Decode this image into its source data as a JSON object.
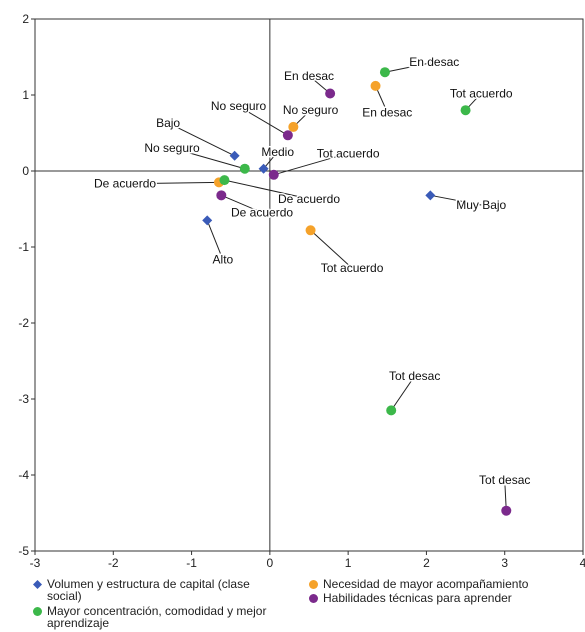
{
  "chart_data": {
    "type": "scatter",
    "title": "",
    "xlabel": "",
    "ylabel": "",
    "xlim": [
      -3,
      4
    ],
    "ylim": [
      -5,
      2
    ],
    "x_ticks": [
      "-3",
      "-2",
      "-1",
      "0",
      "1",
      "2",
      "3",
      "4"
    ],
    "y_ticks": [
      "2",
      "1",
      "0",
      "-1",
      "-2",
      "-3",
      "-4",
      "-5"
    ],
    "grid": false,
    "legend_position": "bottom",
    "series": [
      {
        "name": "Volumen y estructura de capital (clase social)",
        "color": "#3a5bb8",
        "marker": "diamond",
        "points": [
          {
            "x": -0.45,
            "y": 0.2,
            "label": "Bajo",
            "lx": -1.3,
            "ly": 0.58
          },
          {
            "x": -0.08,
            "y": 0.03,
            "label": "Medio",
            "lx": 0.1,
            "ly": 0.2
          },
          {
            "x": 2.05,
            "y": -0.32,
            "label": "Muy Bajo",
            "lx": 2.7,
            "ly": -0.5
          },
          {
            "x": -0.8,
            "y": -0.65,
            "label": "Alto",
            "lx": -0.6,
            "ly": -1.22
          }
        ]
      },
      {
        "name": "Necesidad de mayor acompañamiento",
        "color": "#f5a22a",
        "marker": "circle",
        "points": [
          {
            "x": 1.35,
            "y": 1.12,
            "label": "En desac",
            "lx": 1.5,
            "ly": 0.72
          },
          {
            "x": 0.3,
            "y": 0.58,
            "label": "No seguro",
            "lx": 0.52,
            "ly": 0.75
          },
          {
            "x": -0.65,
            "y": -0.15,
            "label": "De acuerdo",
            "lx": -1.85,
            "ly": -0.22
          },
          {
            "x": 0.52,
            "y": -0.78,
            "label": "Tot acuerdo",
            "lx": 1.05,
            "ly": -1.33
          }
        ]
      },
      {
        "name": "Mayor concentración, comodidad y mejor aprendizaje",
        "color": "#3cb84a",
        "marker": "circle",
        "points": [
          {
            "x": 1.47,
            "y": 1.3,
            "label": "En desac",
            "lx": 2.1,
            "ly": 1.38
          },
          {
            "x": 2.5,
            "y": 0.8,
            "label": "Tot acuerdo",
            "lx": 2.7,
            "ly": 0.97
          },
          {
            "x": -0.32,
            "y": 0.03,
            "label": "No seguro",
            "lx": -1.25,
            "ly": 0.25
          },
          {
            "x": -0.58,
            "y": -0.12,
            "label": "De acuerdo",
            "lx": 0.5,
            "ly": -0.42
          },
          {
            "x": 1.55,
            "y": -3.15,
            "label": "Tot desac",
            "lx": 1.85,
            "ly": -2.75
          }
        ]
      },
      {
        "name": "Habilidades técnicas para aprender",
        "color": "#7b2a8c",
        "marker": "circle",
        "points": [
          {
            "x": 0.77,
            "y": 1.02,
            "label": "En desac",
            "lx": 0.5,
            "ly": 1.2
          },
          {
            "x": 0.23,
            "y": 0.47,
            "label": "No seguro",
            "lx": -0.4,
            "ly": 0.8
          },
          {
            "x": 0.05,
            "y": -0.05,
            "label": "Tot acuerdo",
            "lx": 1.0,
            "ly": 0.18
          },
          {
            "x": -0.62,
            "y": -0.32,
            "label": "De acuerdo",
            "lx": -0.1,
            "ly": -0.6
          },
          {
            "x": 3.02,
            "y": -4.47,
            "label": "Tot desac",
            "lx": 3.0,
            "ly": -4.12
          }
        ]
      }
    ]
  }
}
